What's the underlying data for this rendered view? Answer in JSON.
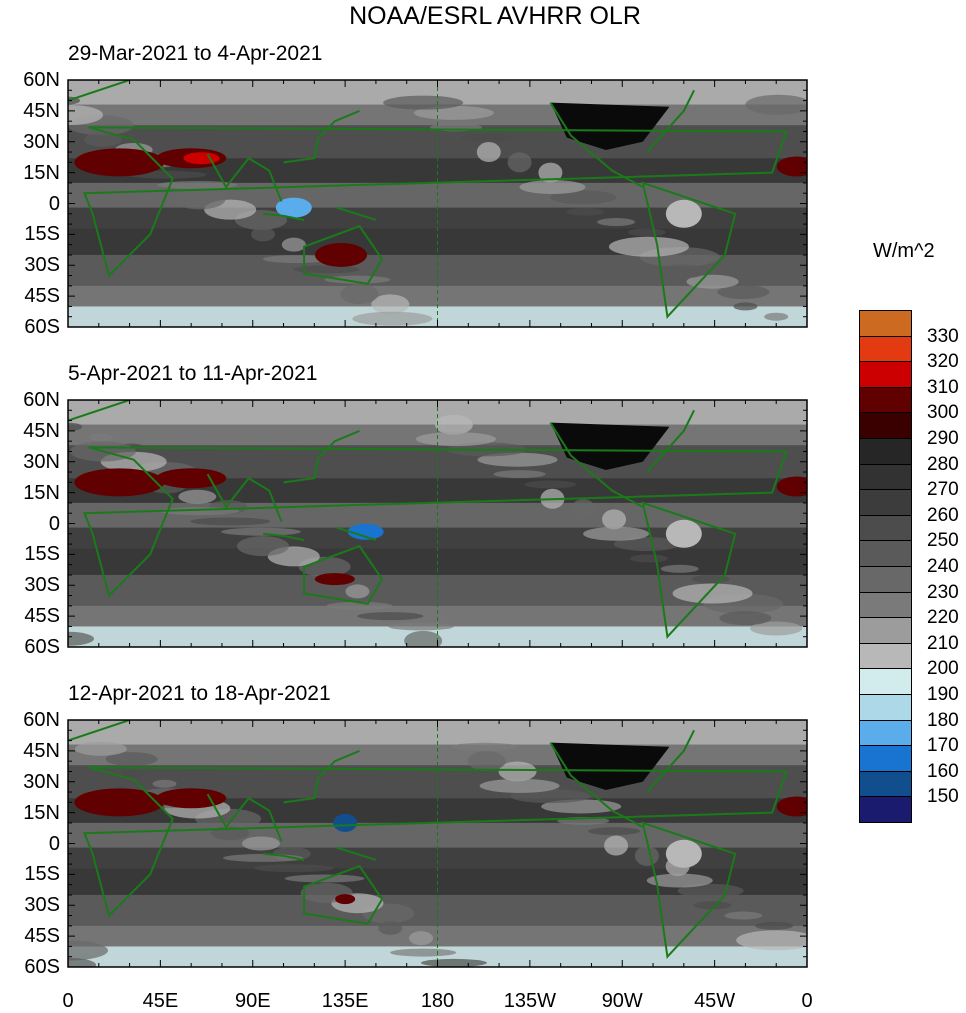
{
  "title": "NOAA/ESRL AVHRR OLR",
  "panels": [
    {
      "label": "29-Mar-2021 to 4-Apr-2021"
    },
    {
      "label": "5-Apr-2021 to 11-Apr-2021"
    },
    {
      "label": "12-Apr-2021 to 18-Apr-2021"
    }
  ],
  "lat_labels": [
    "60N",
    "45N",
    "30N",
    "15N",
    "0",
    "15S",
    "30S",
    "45S",
    "60S"
  ],
  "lon_labels": [
    "0",
    "45E",
    "90E",
    "135E",
    "180",
    "135W",
    "90W",
    "45W",
    "0"
  ],
  "colorbar": {
    "units": "W/m^2",
    "labels": [
      "330",
      "320",
      "310",
      "300",
      "290",
      "280",
      "270",
      "260",
      "250",
      "240",
      "230",
      "220",
      "210",
      "200",
      "190",
      "180",
      "170",
      "160",
      "150"
    ],
    "colors": [
      "#cc6a22",
      "#e33a12",
      "#cc0000",
      "#600000",
      "#3a0000",
      "#262626",
      "#323232",
      "#3c3c3c",
      "#4c4c4c",
      "#5a5a5a",
      "#686868",
      "#7a7a7a",
      "#9c9c9c",
      "#b8b8b8",
      "#d2ecee",
      "#acd8e8",
      "#5aacea",
      "#1874d0",
      "#104e8e",
      "#1a1a6e"
    ]
  }
}
